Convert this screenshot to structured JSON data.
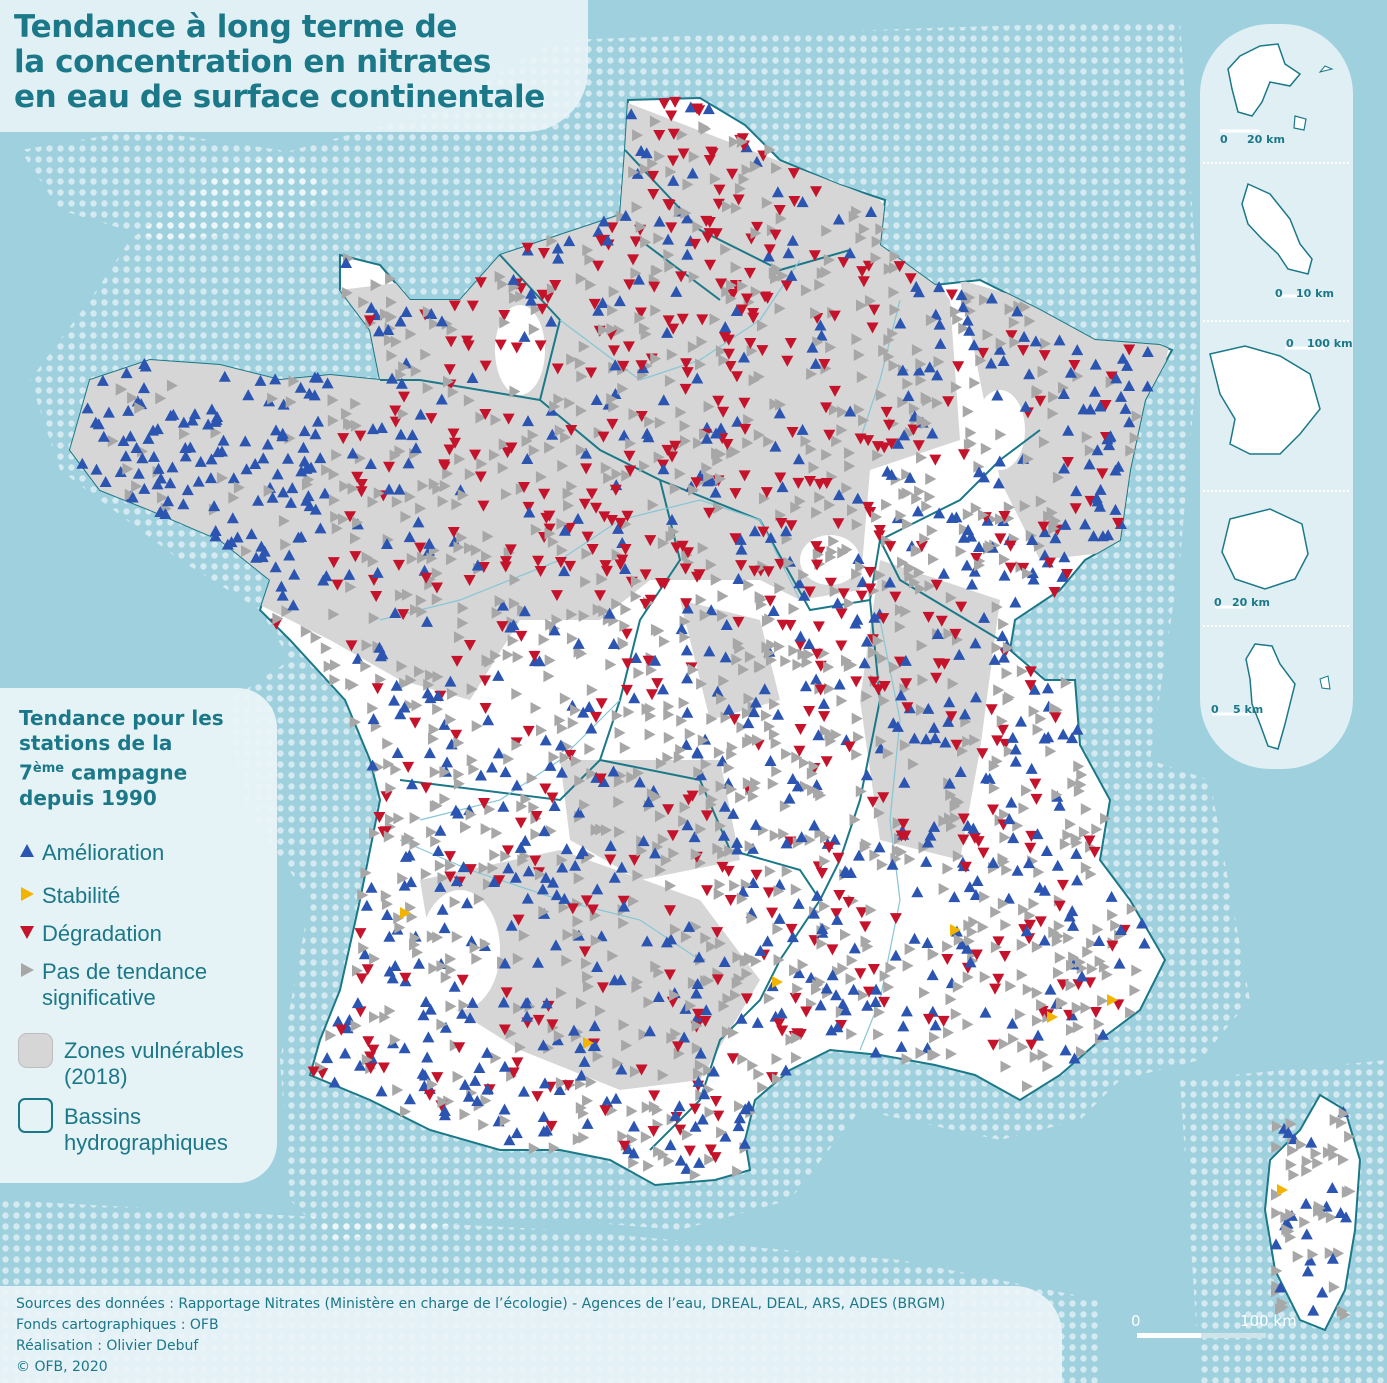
{
  "title": "Tendance à long terme de\nla concentration en nitrates\nen eau de surface continentale",
  "legend": {
    "title_part1": "Tendance pour les\nstations de la\n7",
    "title_sup": "ème",
    "title_part2": " campagne\ndepuis 1990",
    "items": [
      {
        "symbol": "triangle-up",
        "label": "Amélioration",
        "color": "#2b55b1"
      },
      {
        "symbol": "triangle-right",
        "label": "Stabilité",
        "color": "#f2b400"
      },
      {
        "symbol": "triangle-down",
        "label": "Dégradation",
        "color": "#c4132a"
      },
      {
        "symbol": "triangle-right",
        "label": "Pas de tendance\nsignificative",
        "color": "#a7a7a7"
      }
    ],
    "zones_label": "Zones vulnérables\n(2018)",
    "basins_label": "Bassins\nhydrographiques"
  },
  "footer": {
    "sources": "Sources des données : Rapportage Nitrates (Ministère en charge de l’écologie) - Agences de l’eau, DREAL, DEAL, ARS, ADES (BRGM)",
    "basemap": "Fonds cartographiques : OFB",
    "author": "Réalisation : Olivier Debuf",
    "copyright": "© OFB, 2020"
  },
  "scale": {
    "zero": "0",
    "label": "100 km"
  },
  "insets": [
    {
      "name": "guadeloupe",
      "scale_zero": "0",
      "scale_label": "20 km"
    },
    {
      "name": "martinique",
      "scale_zero": "0",
      "scale_label": "10 km"
    },
    {
      "name": "guyane",
      "scale_zero": "0",
      "scale_label": "100 km"
    },
    {
      "name": "reunion",
      "scale_zero": "0",
      "scale_label": "20 km"
    },
    {
      "name": "mayotte",
      "scale_zero": "0",
      "scale_label": "5 km"
    }
  ],
  "colors": {
    "sea": "#9fd0de",
    "land": "#ffffff",
    "vulnerable_zone": "#d6d6d6",
    "basin_border": "#1b7888",
    "improvement": "#2b55b1",
    "stability": "#f2b400",
    "degradation": "#c4132a",
    "no_trend": "#a7a7a7"
  }
}
